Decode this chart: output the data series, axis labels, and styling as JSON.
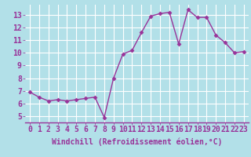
{
  "x": [
    0,
    1,
    2,
    3,
    4,
    5,
    6,
    7,
    8,
    9,
    10,
    11,
    12,
    13,
    14,
    15,
    16,
    17,
    18,
    19,
    20,
    21,
    22,
    23
  ],
  "y": [
    6.9,
    6.5,
    6.2,
    6.3,
    6.2,
    6.3,
    6.4,
    6.5,
    4.9,
    8.0,
    9.9,
    10.2,
    11.6,
    12.9,
    13.1,
    13.2,
    10.7,
    13.4,
    12.8,
    12.8,
    11.4,
    10.8,
    10.0,
    10.1
  ],
  "line_color": "#993399",
  "marker": "D",
  "marker_size": 2.5,
  "bg_color": "#b2e0e8",
  "grid_color": "#ffffff",
  "xlabel": "Windchill (Refroidissement éolien,°C)",
  "xlabel_fontsize": 7,
  "tick_fontsize": 7,
  "tick_color": "#993399",
  "xlim": [
    -0.5,
    23.5
  ],
  "ylim": [
    4.5,
    13.8
  ],
  "yticks": [
    5,
    6,
    7,
    8,
    9,
    10,
    11,
    12,
    13
  ],
  "xticks": [
    0,
    1,
    2,
    3,
    4,
    5,
    6,
    7,
    8,
    9,
    10,
    11,
    12,
    13,
    14,
    15,
    16,
    17,
    18,
    19,
    20,
    21,
    22,
    23
  ]
}
